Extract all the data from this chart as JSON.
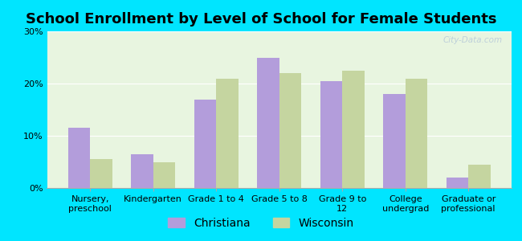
{
  "title": "School Enrollment by Level of School for Female Students",
  "categories": [
    "Nursery,\npreschool",
    "Kindergarten",
    "Grade 1 to 4",
    "Grade 5 to 8",
    "Grade 9 to\n12",
    "College\nundergrad",
    "Graduate or\nprofessional"
  ],
  "christiana": [
    11.5,
    6.5,
    17.0,
    25.0,
    20.5,
    18.0,
    2.0
  ],
  "wisconsin": [
    5.5,
    5.0,
    21.0,
    22.0,
    22.5,
    21.0,
    4.5
  ],
  "christiana_color": "#b39ddb",
  "wisconsin_color": "#c5d5a0",
  "background_outer": "#00e5ff",
  "background_inner": "#e8f5e0",
  "ylim": [
    0,
    30
  ],
  "yticks": [
    0,
    10,
    20,
    30
  ],
  "ytick_labels": [
    "0%",
    "10%",
    "20%",
    "30%"
  ],
  "bar_width": 0.35,
  "legend_labels": [
    "Christiana",
    "Wisconsin"
  ],
  "watermark": "City-Data.com",
  "title_fontsize": 13,
  "tick_fontsize": 8,
  "legend_fontsize": 10
}
